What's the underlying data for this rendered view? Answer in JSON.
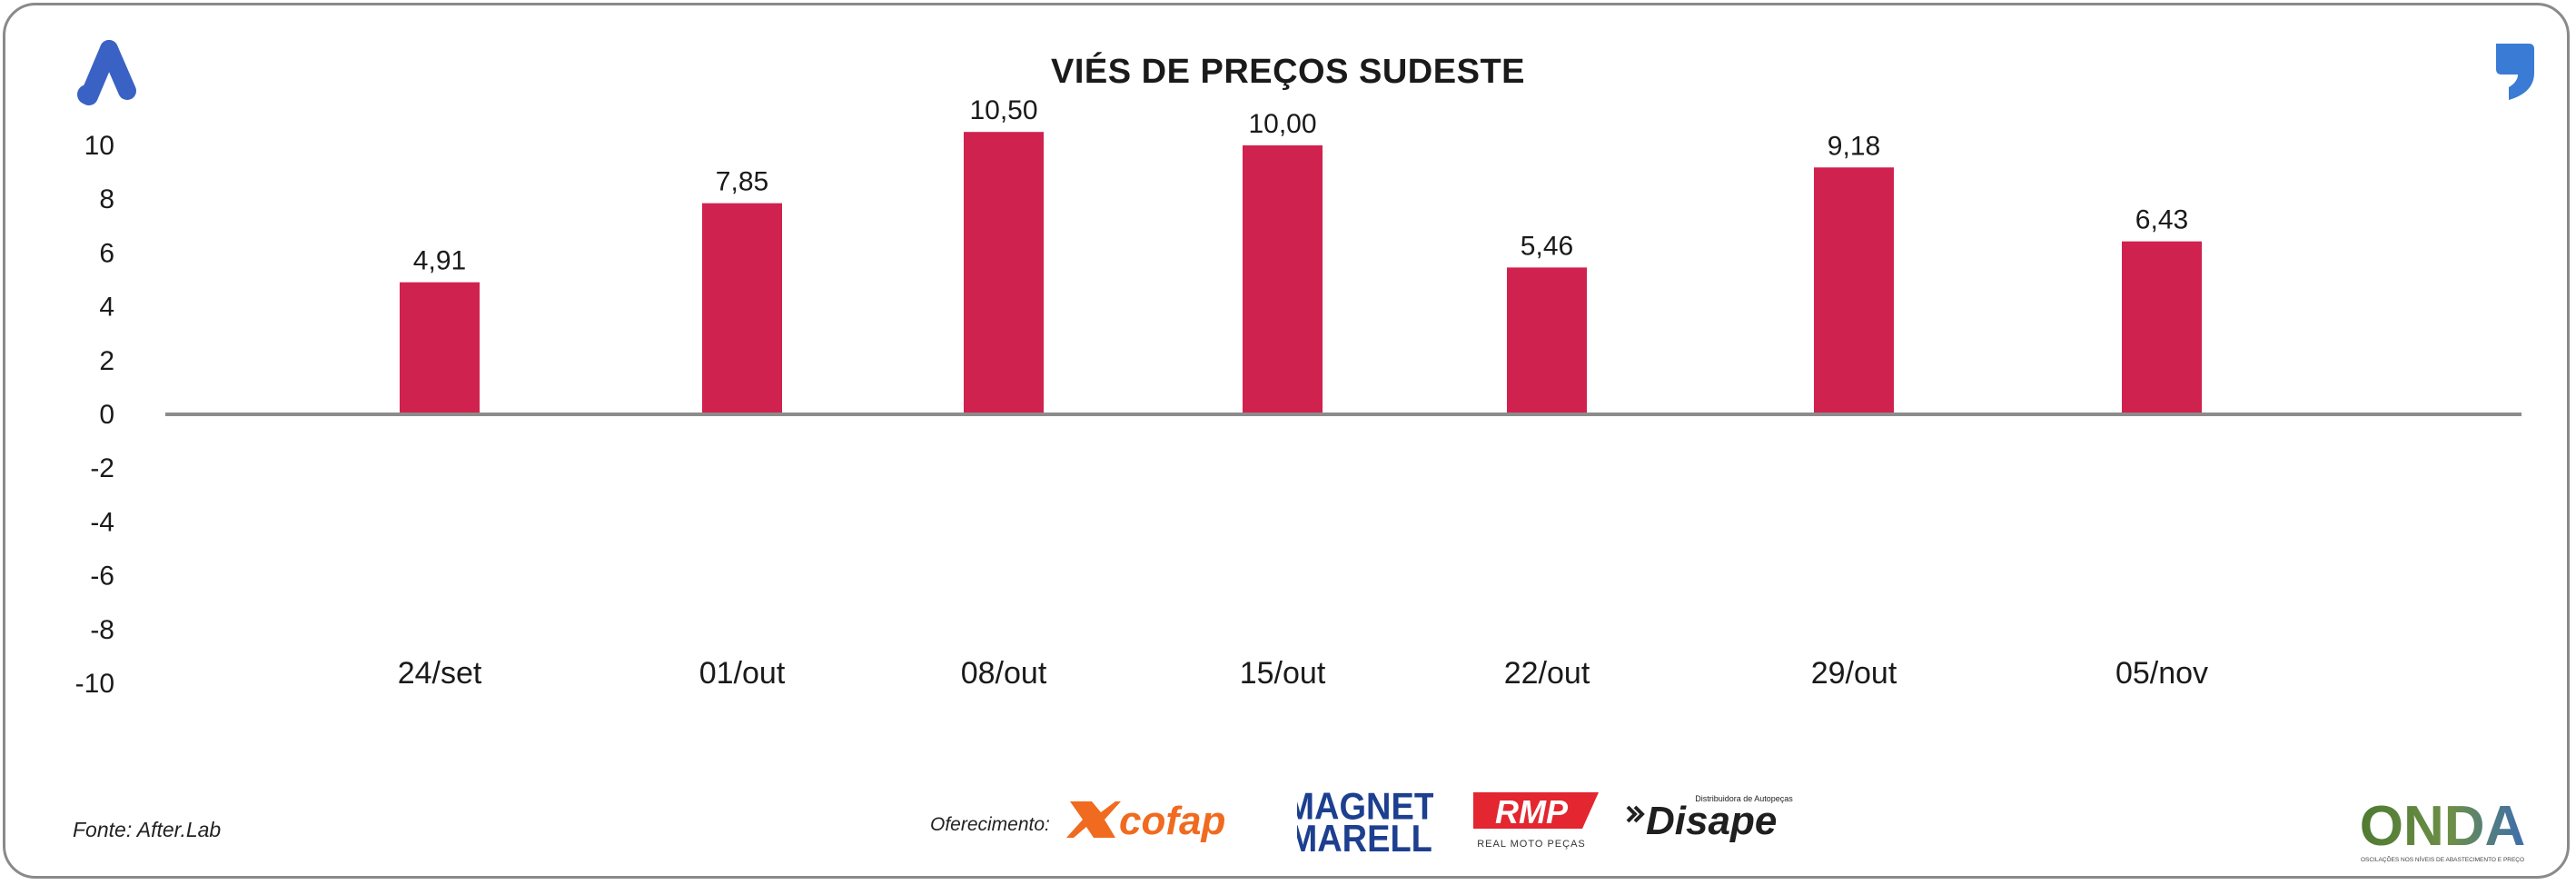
{
  "chart_data": {
    "type": "bar",
    "title": "VIÉS DE PREÇOS SUDESTE",
    "categories": [
      "24/set",
      "01/out",
      "08/out",
      "15/out",
      "22/out",
      "29/out",
      "05/nov"
    ],
    "values": [
      4.91,
      7.85,
      10.5,
      10.0,
      5.46,
      9.18,
      6.43
    ],
    "value_labels": [
      "4,91",
      "7,85",
      "10,50",
      "10,00",
      "5,46",
      "9,18",
      "6,43"
    ],
    "yticks": [
      "10",
      "8",
      "6",
      "4",
      "2",
      "0",
      "-2",
      "-4",
      "-6",
      "-8",
      "-10"
    ],
    "ylim": [
      -10,
      10
    ],
    "bar_color": "#d0224e",
    "axis_color": "#8c8c8c",
    "grid": false,
    "legend": "none"
  },
  "footer": {
    "source": "Fonte: After.Lab",
    "sponsor_label": "Oferecimento:",
    "sponsors": {
      "cofap": "cofap",
      "magneti_line1": "MAGNETI",
      "magneti_line2": "MARELLI",
      "rmp": "RMP",
      "rmp_sub": "REAL MOTO PEÇAS",
      "disape": "Disape",
      "disape_sub": "Distribuidora de Autopeças",
      "onda": "ONDA",
      "onda_sub": "OSCILAÇÕES NOS NÍVEIS DE ABASTECIMENTO E PREÇO"
    }
  },
  "colors": {
    "logo_blue": "#3a62c4",
    "cofap_orange": "#f06a1f",
    "marelli_blue": "#1d3f8f",
    "rmp_red": "#e3262f",
    "onda_green": "#5f8a3a"
  },
  "icons": [
    "after-lab-logo-icon",
    "comma-logo-icon"
  ]
}
